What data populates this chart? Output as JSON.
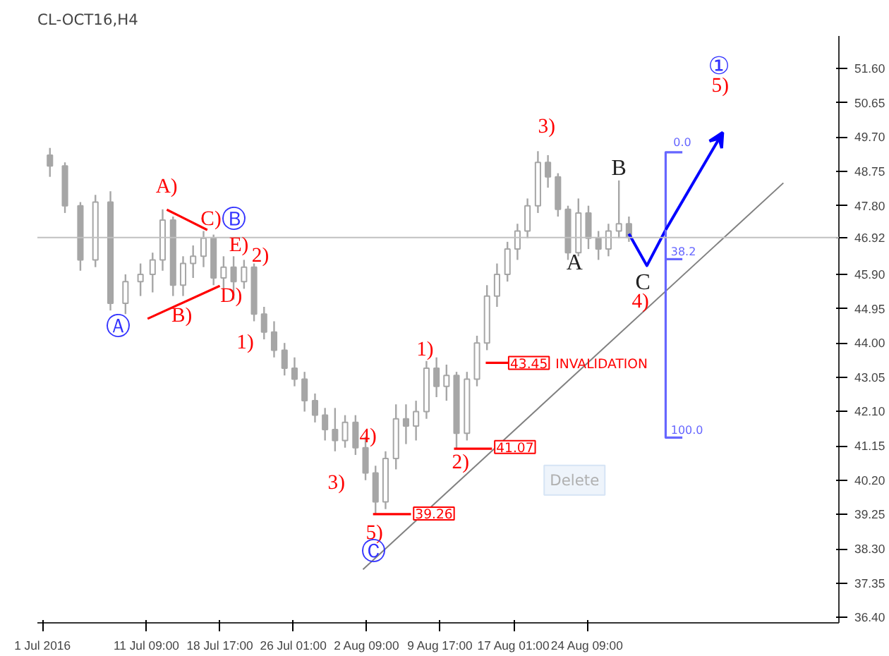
{
  "chart_data": {
    "type": "candlestick",
    "title": "CL-OCT16,H4",
    "x": [
      "2016-07-01T18:00",
      "2016-07-03T06:00",
      "2016-07-04T19:00",
      "2016-07-06T07:00",
      "2016-07-07T19:00",
      "2016-07-09T07:00",
      "2016-07-10T19:00",
      "2016-07-12T00:00",
      "2016-07-13T00:00",
      "2016-07-14T01:00",
      "2016-07-15T01:00",
      "2016-07-16T01:00",
      "2016-07-17T02:00",
      "2016-07-18T02:00",
      "2016-07-19T02:00",
      "2016-07-20T02:00",
      "2016-07-21T03:00",
      "2016-07-22T03:00",
      "2016-07-23T03:00",
      "2016-07-24T03:00",
      "2016-07-25T04:00",
      "2016-07-26T04:00",
      "2016-07-27T04:00",
      "2016-07-28T05:00",
      "2016-07-29T05:00",
      "2016-07-30T05:00",
      "2016-07-31T05:00",
      "2016-08-01T06:00",
      "2016-08-02T06:00",
      "2016-08-03T06:00",
      "2016-08-04T06:00",
      "2016-08-05T07:00",
      "2016-08-06T07:00",
      "2016-08-07T07:00",
      "2016-08-08T08:00",
      "2016-08-09T08:00",
      "2016-08-10T08:00",
      "2016-08-11T08:00",
      "2016-08-12T09:00",
      "2016-08-13T09:00",
      "2016-08-14T09:00",
      "2016-08-15T09:00",
      "2016-08-16T10:00",
      "2016-08-17T10:00",
      "2016-08-18T10:00",
      "2016-08-19T11:00",
      "2016-08-20T11:00",
      "2016-08-21T11:00",
      "2016-08-22T11:00",
      "2016-08-23T12:00",
      "2016-08-24T12:00",
      "2016-08-25T12:00",
      "2016-08-26T12:00",
      "2016-08-27T13:00",
      "2016-08-28T13:00"
    ],
    "ohlc": [
      [
        49.2,
        49.4,
        48.6,
        48.9
      ],
      [
        48.9,
        49.0,
        47.6,
        47.8
      ],
      [
        47.8,
        47.9,
        46.0,
        46.3
      ],
      [
        46.3,
        48.1,
        46.1,
        47.9
      ],
      [
        47.9,
        48.2,
        44.9,
        45.1
      ],
      [
        45.1,
        45.9,
        44.8,
        45.7
      ],
      [
        45.7,
        46.2,
        45.3,
        45.9
      ],
      [
        45.9,
        46.5,
        45.4,
        46.3
      ],
      [
        46.3,
        47.7,
        46.0,
        47.4
      ],
      [
        47.4,
        47.5,
        45.3,
        45.6
      ],
      [
        45.6,
        46.4,
        45.3,
        46.2
      ],
      [
        46.2,
        46.7,
        45.8,
        46.4
      ],
      [
        46.4,
        47.1,
        46.1,
        46.9
      ],
      [
        46.9,
        47.0,
        45.6,
        45.8
      ],
      [
        45.8,
        46.4,
        45.5,
        46.1
      ],
      [
        46.1,
        46.4,
        45.2,
        45.7
      ],
      [
        45.7,
        46.3,
        45.5,
        46.1
      ],
      [
        46.1,
        46.2,
        44.6,
        44.8
      ],
      [
        44.8,
        45.0,
        44.1,
        44.3
      ],
      [
        44.3,
        44.6,
        43.6,
        43.8
      ],
      [
        43.8,
        44.0,
        43.1,
        43.3
      ],
      [
        43.3,
        43.6,
        42.8,
        43.0
      ],
      [
        43.0,
        43.2,
        42.1,
        42.4
      ],
      [
        42.4,
        42.6,
        41.8,
        42.0
      ],
      [
        42.0,
        42.2,
        41.3,
        41.6
      ],
      [
        41.6,
        42.2,
        41.0,
        41.3
      ],
      [
        41.3,
        42.0,
        41.1,
        41.8
      ],
      [
        41.8,
        42.0,
        40.9,
        41.1
      ],
      [
        41.1,
        41.4,
        40.2,
        40.4
      ],
      [
        40.4,
        40.6,
        39.26,
        39.6
      ],
      [
        39.6,
        41.0,
        39.4,
        40.8
      ],
      [
        40.8,
        42.3,
        40.5,
        41.9
      ],
      [
        41.9,
        42.3,
        41.2,
        41.7
      ],
      [
        41.7,
        42.4,
        41.3,
        42.1
      ],
      [
        42.1,
        43.5,
        41.9,
        43.3
      ],
      [
        43.3,
        43.6,
        42.5,
        42.8
      ],
      [
        42.8,
        43.4,
        42.4,
        43.1
      ],
      [
        43.1,
        43.2,
        41.07,
        41.5
      ],
      [
        41.5,
        43.2,
        41.3,
        43.0
      ],
      [
        43.0,
        44.2,
        42.8,
        44.0
      ],
      [
        44.0,
        45.6,
        43.8,
        45.3
      ],
      [
        45.3,
        46.2,
        45.0,
        45.9
      ],
      [
        45.9,
        46.8,
        45.7,
        46.6
      ],
      [
        46.6,
        47.3,
        46.3,
        47.1
      ],
      [
        47.1,
        48.0,
        46.9,
        47.8
      ],
      [
        47.8,
        49.31,
        47.6,
        49.0
      ],
      [
        49.0,
        49.2,
        48.3,
        48.6
      ],
      [
        48.6,
        48.7,
        47.5,
        47.7
      ],
      [
        47.7,
        47.8,
        46.3,
        46.5
      ],
      [
        46.5,
        48.0,
        46.4,
        47.6
      ],
      [
        47.6,
        47.8,
        46.6,
        46.9
      ],
      [
        46.9,
        47.1,
        46.3,
        46.6
      ],
      [
        46.6,
        47.3,
        46.4,
        47.1
      ],
      [
        47.1,
        48.5,
        46.9,
        47.3
      ],
      [
        47.3,
        47.5,
        46.8,
        46.92
      ]
    ],
    "color": "#a6a6a6",
    "series": [
      {
        "type": "line",
        "color": "#ff0000",
        "x": [
          "2016-07-13T10:00",
          "2016-07-17T11:00"
        ],
        "values": [
          47.69,
          47.13
        ]
      },
      {
        "type": "line",
        "color": "#ff0000",
        "x": [
          "2016-07-11T12:00",
          "2016-07-18T17:00"
        ],
        "values": [
          44.67,
          45.58
        ]
      },
      {
        "type": "line",
        "color": "#808080",
        "x": [
          "2016-08-02T00:00",
          "2016-09-12T23:00"
        ],
        "values": [
          37.73,
          48.43
        ]
      },
      {
        "type": "line",
        "color": "#0000ff",
        "x": [
          "2016-08-28T13:00",
          "2016-08-30T08:00",
          "2016-09-01T05:00"
        ],
        "values": [
          47.02,
          46.14,
          47.13
        ]
      },
      {
        "type": "line",
        "color": "#6666ff",
        "x": [
          "2016-09-02T21:00",
          "2016-09-01T05:00",
          "2016-09-01T05:00",
          "2016-09-02T21:00"
        ],
        "values": [
          49.28,
          49.28,
          41.38,
          41.38
        ]
      },
      {
        "type": "line",
        "color": "#6666ff",
        "x": [
          "2016-09-01T05:00",
          "2016-09-02T21:00"
        ],
        "values": [
          46.32,
          46.32
        ]
      },
      {
        "type": "line",
        "color": "#ff0000",
        "x": [
          "2016-08-03T00:00",
          "2016-08-06T19:00"
        ],
        "values": [
          39.26,
          39.26
        ]
      },
      {
        "type": "line",
        "color": "#ff0000",
        "x": [
          "2016-08-11T02:00",
          "2016-08-14T21:00"
        ],
        "values": [
          41.07,
          41.07
        ]
      },
      {
        "type": "line",
        "color": "#ff0000",
        "x": [
          "2016-08-14T06:00",
          "2016-08-16T19:00"
        ],
        "values": [
          43.45,
          43.45
        ]
      }
    ],
    "ref_lines": [
      {
        "axis": "y",
        "value": 46.92,
        "label": "46.92",
        "color": "#c0c0c0"
      }
    ],
    "annotations": [
      "A)",
      "B)",
      "C)",
      "D)",
      "E)",
      "2)",
      "1)",
      "3)",
      "4)",
      "5)",
      "1)",
      "2)",
      "3)",
      "4)",
      "5)",
      "Ⓐ",
      "Ⓑ",
      "Ⓒ",
      "①",
      "A",
      "B",
      "C",
      "39.26",
      "41.07",
      "43.45",
      "INVALIDATION",
      "0.0",
      "38.2",
      "100.0",
      "Delete"
    ],
    "xlim": [
      "2016-06-30T12:00",
      "2016-09-18T12:00"
    ],
    "ylim": [
      36.25,
      52.5
    ],
    "xticks": [
      {
        "value": "2016-07-01",
        "label": "1 Jul 2016"
      },
      {
        "value": "2016-07-11T09:00",
        "label": "11 Jul 09:00"
      },
      {
        "value": "2016-07-18T17:00",
        "label": "18 Jul 17:00"
      },
      {
        "value": "2016-07-26T01:00",
        "label": "26 Jul 01:00"
      },
      {
        "value": "2016-08-02T09:00",
        "label": "2 Aug 09:00"
      },
      {
        "value": "2016-08-09T17:00",
        "label": "9 Aug 17:00"
      },
      {
        "value": "2016-08-17T01:00",
        "label": "17 Aug 01:00"
      },
      {
        "value": "2016-08-24T09:00",
        "label": "24 Aug 09:00"
      }
    ],
    "yticks": [
      {
        "value": 36.4,
        "label": "36.40"
      },
      {
        "value": 37.35,
        "label": "37.35"
      },
      {
        "value": 38.3,
        "label": "38.30"
      },
      {
        "value": 39.25,
        "label": "39.25"
      },
      {
        "value": 40.2,
        "label": "40.20"
      },
      {
        "value": 41.15,
        "label": "41.15"
      },
      {
        "value": 42.1,
        "label": "42.10"
      },
      {
        "value": 43.05,
        "label": "43.05"
      },
      {
        "value": 44.0,
        "label": "44.00"
      },
      {
        "value": 44.95,
        "label": "44.95"
      },
      {
        "value": 45.9,
        "label": "45.90"
      },
      {
        "value": 47.8,
        "label": "47.80"
      },
      {
        "value": 48.75,
        "label": "48.75"
      },
      {
        "value": 49.7,
        "label": "49.70"
      },
      {
        "value": 50.65,
        "label": "50.65"
      },
      {
        "value": 51.6,
        "label": "51.60"
      }
    ],
    "grid": false
  }
}
